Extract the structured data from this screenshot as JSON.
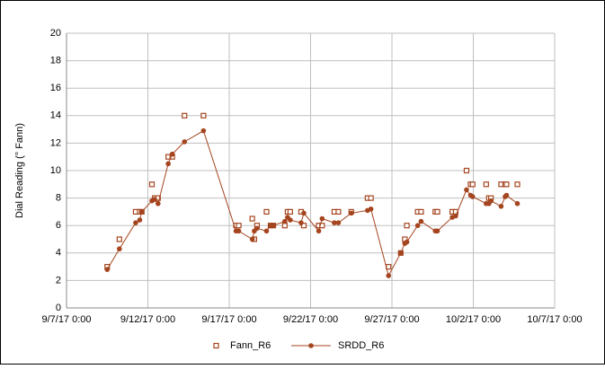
{
  "chart_data": {
    "type": "line",
    "ylabel": "Dial Reading (° Fann)",
    "x": [
      "2017-09-09T12:00",
      "2017-09-10T06:00",
      "2017-09-11T06:00",
      "2017-09-11T12:00",
      "2017-09-11T15:00",
      "2017-09-12T06:00",
      "2017-09-12T10:00",
      "2017-09-12T15:00",
      "2017-09-13T06:00",
      "2017-09-13T12:00",
      "2017-09-14T06:00",
      "2017-09-15T10:00",
      "2017-09-17T10:00",
      "2017-09-17T14:00",
      "2017-09-18T10:00",
      "2017-09-18T13:00",
      "2017-09-18T17:00",
      "2017-09-19T07:00",
      "2017-09-19T13:00",
      "2017-09-19T17:00",
      "2017-09-20T10:00",
      "2017-09-20T14:00",
      "2017-09-20T18:00",
      "2017-09-21T10:00",
      "2017-09-21T14:00",
      "2017-09-22T12:00",
      "2017-09-22T17:00",
      "2017-09-23T11:00",
      "2017-09-23T17:00",
      "2017-09-24T12:00",
      "2017-09-25T12:00",
      "2017-09-25T17:00",
      "2017-09-26T19:00",
      "2017-09-27T13:00",
      "2017-09-27T19:00",
      "2017-09-27T22:00",
      "2017-09-28T14:00",
      "2017-09-28T19:00",
      "2017-09-29T16:00",
      "2017-09-29T19:00",
      "2017-09-30T17:00",
      "2017-09-30T22:00",
      "2017-10-01T14:00",
      "2017-10-01T20:00",
      "2017-10-01T23:00",
      "2017-10-02T19:00",
      "2017-10-02T23:00",
      "2017-10-03T02:00",
      "2017-10-03T17:00",
      "2017-10-03T23:00",
      "2017-10-04T01:00",
      "2017-10-04T17:00"
    ],
    "series": [
      {
        "name": "Fann_R6",
        "color": "#a5451f",
        "style": "markers",
        "values": [
          3,
          5,
          7,
          7,
          7,
          9,
          8,
          8,
          11,
          11,
          14,
          14,
          6,
          6,
          6.5,
          5,
          6,
          7,
          6,
          6,
          6,
          7,
          7,
          7,
          6,
          6,
          6,
          7,
          7,
          7,
          8,
          8,
          3,
          4,
          5,
          6,
          7,
          7,
          7,
          7,
          7,
          7,
          10,
          9,
          9,
          9,
          8,
          8,
          9,
          9,
          9,
          9
        ]
      },
      {
        "name": "SRDD_R6",
        "color": "#a5451f",
        "style": "line",
        "values": [
          2.8,
          4.3,
          6.2,
          6.4,
          7.0,
          7.8,
          7.9,
          7.6,
          10.5,
          11.2,
          12.1,
          12.9,
          5.6,
          5.6,
          5.0,
          5.6,
          5.8,
          5.6,
          6.0,
          6.0,
          6.3,
          6.6,
          6.4,
          6.2,
          6.9,
          5.6,
          6.5,
          6.2,
          6.2,
          6.9,
          7.1,
          7.2,
          2.35,
          4.0,
          4.7,
          4.8,
          6.0,
          6.3,
          5.6,
          5.6,
          6.6,
          6.7,
          8.6,
          8.2,
          8.1,
          7.6,
          7.6,
          7.8,
          7.4,
          8.1,
          8.2,
          7.6
        ]
      }
    ],
    "xlim": [
      "2017-09-07T00:00",
      "2017-10-07T00:00"
    ],
    "xticks": [
      {
        "value": "2017-09-07T00:00",
        "label": "9/7/17 0:00"
      },
      {
        "value": "2017-09-12T00:00",
        "label": "9/12/17 0:00"
      },
      {
        "value": "2017-09-17T00:00",
        "label": "9/17/17 0:00"
      },
      {
        "value": "2017-09-22T00:00",
        "label": "9/22/17 0:00"
      },
      {
        "value": "2017-09-27T00:00",
        "label": "9/27/17 0:00"
      },
      {
        "value": "2017-10-02T00:00",
        "label": "10/2/17 0:00"
      },
      {
        "value": "2017-10-07T00:00",
        "label": "10/7/17 0:00"
      }
    ],
    "ylim": [
      0,
      20
    ],
    "yticks": [
      0,
      2,
      4,
      6,
      8,
      10,
      12,
      14,
      16,
      18,
      20
    ],
    "grid": true,
    "legend": "bottom"
  }
}
